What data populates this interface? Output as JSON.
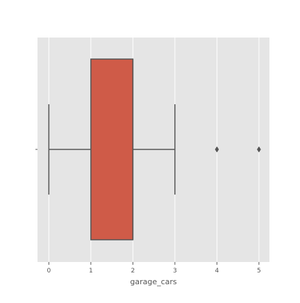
{
  "chart_data": {
    "type": "box",
    "orientation": "horizontal",
    "title": "",
    "xlabel": "garage_cars",
    "ylabel": "",
    "xlim": [
      -0.27,
      5.25
    ],
    "xticks": [
      0,
      1,
      2,
      3,
      4,
      5
    ],
    "xtick_labels": [
      "0",
      "1",
      "2",
      "3",
      "4",
      "5"
    ],
    "ytick_labels": [
      ""
    ],
    "grid": true,
    "style": "ggplot",
    "series": [
      {
        "whisker_low": 0,
        "q1": 1,
        "median": 2,
        "q3": 2,
        "whisker_high": 3,
        "outliers": [
          4,
          5
        ]
      }
    ],
    "colors": {
      "box_fill": "#CF5B48",
      "box_edge": "#555555",
      "whisker": "#555555",
      "outlier": "#555555",
      "axes_bg": "#E5E5E5",
      "grid": "#FFFFFF",
      "tick_label": "#555555",
      "axis_label": "#555555",
      "figure_bg": "#FFFFFF"
    }
  }
}
